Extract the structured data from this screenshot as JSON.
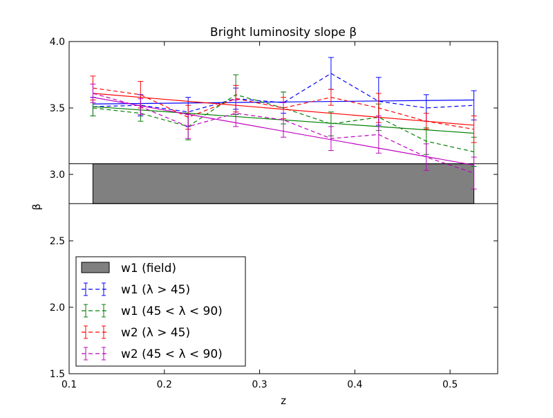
{
  "chart_data": {
    "type": "line",
    "title": "Bright luminosity slope β",
    "xlabel": "z",
    "ylabel": "β",
    "xlim": [
      0.1,
      0.55
    ],
    "ylim": [
      1.5,
      4.0
    ],
    "xticks": [
      "0.1",
      "0.2",
      "0.3",
      "0.4",
      "0.5"
    ],
    "yticks": [
      "1.5",
      "2.0",
      "2.5",
      "3.0",
      "3.5",
      "4.0"
    ],
    "grid": false,
    "legend_position": "lower-left",
    "band": {
      "name": "w1 (field)",
      "x": [
        0.125,
        0.525
      ],
      "y": [
        2.78,
        3.08
      ],
      "color": "#808080",
      "line_y": 3.08
    },
    "x": [
      0.125,
      0.175,
      0.225,
      0.275,
      0.325,
      0.375,
      0.425,
      0.475,
      0.525
    ],
    "series": [
      {
        "name": "w1 (λ > 45)",
        "color": "#0000ff",
        "values": [
          3.51,
          3.52,
          3.47,
          3.57,
          3.54,
          3.76,
          3.55,
          3.5,
          3.52
        ],
        "errors": [
          0.07,
          0.08,
          0.11,
          0.08,
          0.08,
          0.12,
          0.18,
          0.1,
          0.11
        ],
        "fit": [
          3.53,
          3.56
        ]
      },
      {
        "name": "w1 (45 < λ < 90)",
        "color": "#008000",
        "values": [
          3.5,
          3.46,
          3.36,
          3.6,
          3.5,
          3.38,
          3.43,
          3.25,
          3.17
        ],
        "errors": [
          0.06,
          0.06,
          0.1,
          0.15,
          0.12,
          0.09,
          0.1,
          0.1,
          0.11
        ],
        "fit": [
          3.51,
          3.31
        ]
      },
      {
        "name": "w2 (λ > 45)",
        "color": "#ff0000",
        "values": [
          3.65,
          3.6,
          3.43,
          3.57,
          3.5,
          3.58,
          3.5,
          3.4,
          3.34
        ],
        "errors": [
          0.09,
          0.1,
          0.09,
          0.1,
          0.08,
          0.06,
          0.11,
          0.06,
          0.1
        ],
        "fit": [
          3.61,
          3.37
        ]
      },
      {
        "name": "w2 (45 < λ < 90)",
        "color": "#bf00bf",
        "values": [
          3.61,
          3.51,
          3.36,
          3.46,
          3.41,
          3.27,
          3.3,
          3.13,
          3.01
        ],
        "errors": [
          0.07,
          0.06,
          0.09,
          0.1,
          0.13,
          0.09,
          0.14,
          0.1,
          0.12
        ],
        "fit": [
          3.58,
          3.07
        ]
      }
    ]
  }
}
